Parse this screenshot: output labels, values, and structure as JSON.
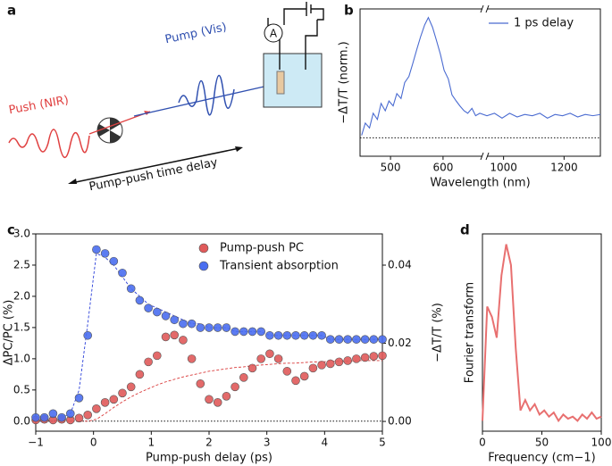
{
  "diagram": {
    "panel_label": "a",
    "push_label": "Push (NIR)",
    "pump_label": "Pump (Vis)",
    "meter_label": "A",
    "delay_label": "Pump-push time delay"
  },
  "chart_data": [
    {
      "type": "line",
      "panel_label": "b",
      "xlabel": "Wavelength (nm)",
      "ylabel": "−ΔT/T (norm.)",
      "xlim": [
        442,
        1320
      ],
      "xbreak": [
        675,
        945
      ],
      "xticks": [
        500,
        600,
        1000,
        1200
      ],
      "ylim": [
        -0.15,
        1.05
      ],
      "zero_line": true,
      "legend": "upper right",
      "series": [
        {
          "name": "1 ps delay",
          "color": "#4a6bd1",
          "x": [
            445,
            452,
            460,
            467,
            475,
            482,
            490,
            497,
            505,
            512,
            520,
            527,
            535,
            542,
            550,
            557,
            565,
            572,
            580,
            587,
            595,
            602,
            610,
            617,
            625,
            632,
            640,
            647,
            655,
            662,
            670,
            945,
            970,
            995,
            1020,
            1045,
            1070,
            1095,
            1120,
            1145,
            1170,
            1195,
            1220,
            1245,
            1270,
            1295,
            1320
          ],
          "values": [
            0.02,
            0.12,
            0.08,
            0.2,
            0.15,
            0.28,
            0.22,
            0.3,
            0.26,
            0.36,
            0.32,
            0.45,
            0.5,
            0.6,
            0.72,
            0.82,
            0.92,
            0.98,
            0.9,
            0.8,
            0.68,
            0.55,
            0.48,
            0.35,
            0.3,
            0.26,
            0.22,
            0.2,
            0.24,
            0.18,
            0.2,
            0.18,
            0.2,
            0.16,
            0.2,
            0.17,
            0.19,
            0.18,
            0.2,
            0.16,
            0.19,
            0.18,
            0.2,
            0.17,
            0.19,
            0.18,
            0.19
          ]
        }
      ]
    },
    {
      "type": "scatter",
      "panel_label": "c",
      "xlabel": "Pump-push delay (ps)",
      "ylabel": "ΔPC/PC (%)",
      "y2label": "−ΔT/T (%)",
      "xlim": [
        -1,
        5
      ],
      "xticks": [
        {
          "value": -1,
          "label": "−1"
        },
        0,
        1,
        2,
        3,
        4,
        5
      ],
      "ylim": [
        -0.16,
        3.0
      ],
      "yticks": [
        {
          "value": 0,
          "label": "0.0"
        },
        0.5,
        {
          "value": 1,
          "label": "1.0"
        },
        1.5,
        {
          "value": 2,
          "label": "2.0"
        },
        2.5,
        {
          "value": 3,
          "label": "3.0"
        }
      ],
      "y2lim": [
        -0.0025,
        0.048
      ],
      "y2ticks": [
        {
          "value": 0,
          "label": "0.00"
        },
        0.02,
        0.04
      ],
      "zero_line": true,
      "legend": "upper right",
      "x": [
        -1,
        -0.85,
        -0.7,
        -0.55,
        -0.4,
        -0.25,
        -0.1,
        0.05,
        0.2,
        0.35,
        0.5,
        0.65,
        0.8,
        0.95,
        1.1,
        1.25,
        1.4,
        1.55,
        1.7,
        1.85,
        2.0,
        2.15,
        2.3,
        2.45,
        2.6,
        2.75,
        2.9,
        3.05,
        3.2,
        3.35,
        3.5,
        3.65,
        3.8,
        3.95,
        4.1,
        4.25,
        4.4,
        4.55,
        4.7,
        4.85,
        5.0
      ],
      "series": [
        {
          "name": "Pump-push PC",
          "color": "#e05a5a",
          "values": [
            0.02,
            0.03,
            0.02,
            0.03,
            0.02,
            0.05,
            0.1,
            0.2,
            0.3,
            0.35,
            0.45,
            0.55,
            0.75,
            0.95,
            1.05,
            1.35,
            1.38,
            1.3,
            1.0,
            0.6,
            0.35,
            0.3,
            0.4,
            0.55,
            0.7,
            0.85,
            1.0,
            1.08,
            1.0,
            0.8,
            0.65,
            0.72,
            0.85,
            0.9,
            0.92,
            0.95,
            0.97,
            1.0,
            1.02,
            1.04,
            1.05
          ]
        },
        {
          "name": "Transient absorption",
          "color": "#4a6ef0",
          "axis": "y2",
          "values": [
            0.001,
            0.001,
            0.002,
            0.001,
            0.002,
            0.006,
            0.022,
            0.044,
            0.043,
            0.041,
            0.038,
            0.034,
            0.031,
            0.029,
            0.028,
            0.027,
            0.026,
            0.025,
            0.025,
            0.024,
            0.024,
            0.024,
            0.024,
            0.023,
            0.023,
            0.023,
            0.023,
            0.022,
            0.022,
            0.022,
            0.022,
            0.022,
            0.022,
            0.022,
            0.021,
            0.021,
            0.021,
            0.021,
            0.021,
            0.021,
            0.021
          ]
        }
      ],
      "fits": [
        {
          "color": "#d93a3a",
          "values": [
            0,
            0,
            0,
            0,
            0,
            0,
            0,
            0.03,
            0.12,
            0.22,
            0.31,
            0.39,
            0.46,
            0.52,
            0.58,
            0.63,
            0.67,
            0.71,
            0.74,
            0.77,
            0.8,
            0.82,
            0.84,
            0.86,
            0.87,
            0.89,
            0.9,
            0.91,
            0.92,
            0.93,
            0.93,
            0.94,
            0.95,
            0.95,
            0.96,
            0.96,
            0.96,
            0.97,
            0.97,
            0.97,
            0.97
          ]
        },
        {
          "color": "#2a3fd9",
          "axis": "y2",
          "values": [
            0,
            0,
            0,
            0.001,
            0.002,
            0.008,
            0.025,
            0.043,
            0.042,
            0.04,
            0.037,
            0.034,
            0.032,
            0.03,
            0.029,
            0.028,
            0.027,
            0.026,
            0.025,
            0.025,
            0.024,
            0.024,
            0.024,
            0.023,
            0.023,
            0.023,
            0.023,
            0.022,
            0.022,
            0.022,
            0.022,
            0.022,
            0.022,
            0.022,
            0.021,
            0.021,
            0.021,
            0.021,
            0.021,
            0.021,
            0.021
          ]
        }
      ]
    },
    {
      "type": "line",
      "panel_label": "d",
      "xlabel": "Frequency (cm−1)",
      "ylabel": "Fourier transform",
      "xlim": [
        0,
        100
      ],
      "xticks": [
        0,
        50,
        100
      ],
      "ylim": [
        0,
        0.95
      ],
      "series": [
        {
          "color": "#e87070",
          "x": [
            0,
            4,
            8,
            12,
            16,
            20,
            24,
            28,
            32,
            36,
            40,
            44,
            48,
            52,
            56,
            60,
            64,
            68,
            72,
            76,
            80,
            84,
            88,
            92,
            96,
            100
          ],
          "values": [
            0.05,
            0.6,
            0.55,
            0.45,
            0.75,
            0.9,
            0.8,
            0.4,
            0.1,
            0.15,
            0.1,
            0.13,
            0.08,
            0.1,
            0.07,
            0.09,
            0.05,
            0.08,
            0.06,
            0.07,
            0.05,
            0.08,
            0.06,
            0.09,
            0.06,
            0.07
          ]
        }
      ]
    }
  ]
}
